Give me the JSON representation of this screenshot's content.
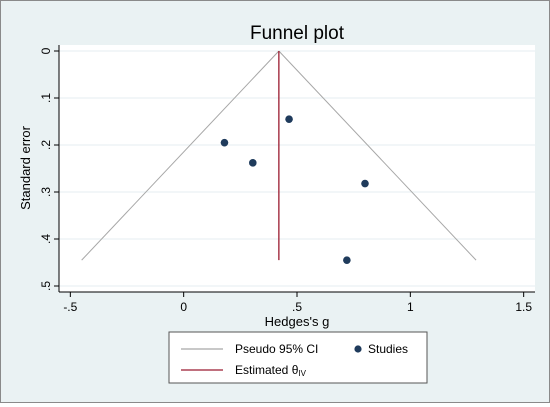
{
  "chart_data": {
    "type": "scatter",
    "title": "Funnel plot",
    "xlabel": "Hedges's g",
    "ylabel": "Standard error",
    "xlim": [
      -0.55,
      1.55
    ],
    "ylim": [
      0,
      0.5
    ],
    "y_reversed": true,
    "xticks": [
      -0.5,
      0,
      0.5,
      1,
      1.5
    ],
    "xtick_labels": [
      "-.5",
      "0",
      ".5",
      "1",
      "1.5"
    ],
    "yticks": [
      0,
      0.1,
      0.2,
      0.3,
      0.4,
      0.5
    ],
    "ytick_labels": [
      "0",
      ".1",
      ".2",
      ".3",
      ".4",
      ".5"
    ],
    "grid": "horizontal",
    "estimate": 0.42,
    "pseudo_ci_apex": [
      0.42,
      0
    ],
    "pseudo_ci_bottom": [
      [
        -0.45,
        0.445
      ],
      [
        1.29,
        0.445
      ]
    ],
    "estimate_line_range": [
      0,
      0.445
    ],
    "studies": [
      {
        "x": 0.18,
        "y": 0.195
      },
      {
        "x": 0.305,
        "y": 0.238
      },
      {
        "x": 0.465,
        "y": 0.145
      },
      {
        "x": 0.8,
        "y": 0.282
      },
      {
        "x": 0.72,
        "y": 0.445
      }
    ],
    "legend": {
      "placement": "bottom",
      "items": [
        {
          "label": "Pseudo 95% CI",
          "symbol": "line",
          "color": "#a7a7a7"
        },
        {
          "label": "Studies",
          "symbol": "dot",
          "color": "#1f3b5c"
        },
        {
          "label": "Estimated θ",
          "subscript": "IV",
          "symbol": "line",
          "color": "#9b1b30"
        }
      ]
    },
    "colors": {
      "background": "#eaf2f3",
      "plot_area": "#ffffff",
      "ci_line": "#a7a7a7",
      "estimate_line": "#9b1b30",
      "points": "#1f3b5c",
      "grid": "#e5eef0"
    }
  }
}
